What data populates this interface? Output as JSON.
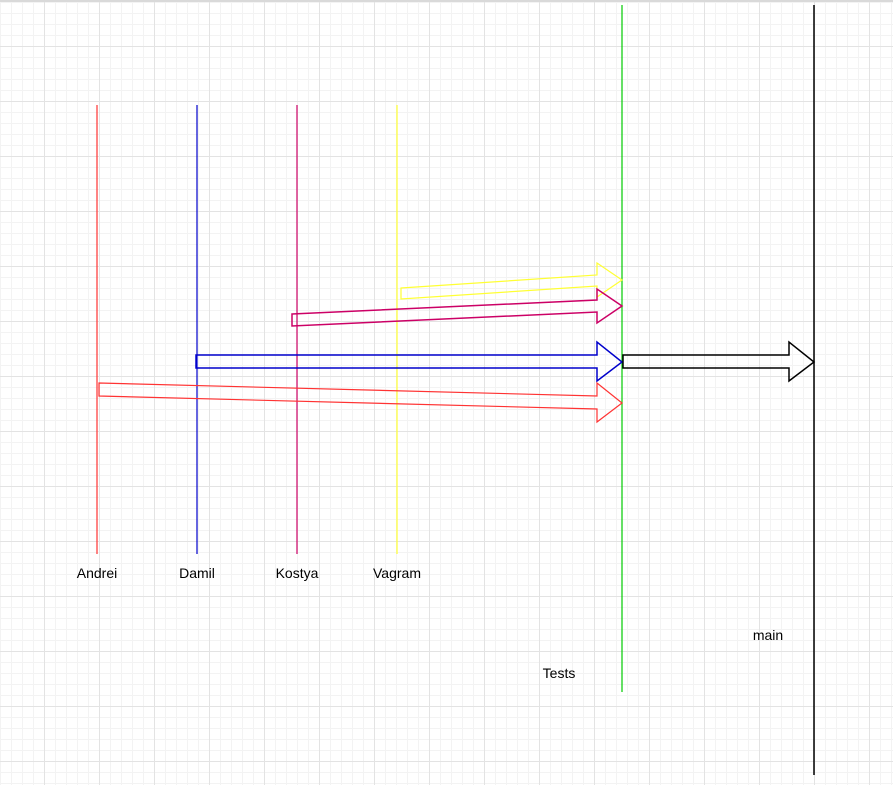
{
  "branches": [
    {
      "id": "andrei",
      "label": "Andrei",
      "color": "#ff3333"
    },
    {
      "id": "damil",
      "label": "Damil",
      "color": "#0000cc"
    },
    {
      "id": "kostya",
      "label": "Kostya",
      "color": "#cc0066"
    },
    {
      "id": "vagram",
      "label": "Vagram",
      "color": "#ffff33"
    }
  ],
  "tests": {
    "label": "Tests",
    "color": "#00cc00"
  },
  "main": {
    "label": "main",
    "color": "#000000"
  },
  "merges": [
    {
      "from": "vagram",
      "to": "tests"
    },
    {
      "from": "kostya",
      "to": "tests"
    },
    {
      "from": "damil",
      "to": "tests"
    },
    {
      "from": "andrei",
      "to": "tests"
    },
    {
      "from": "tests",
      "to": "main"
    }
  ]
}
